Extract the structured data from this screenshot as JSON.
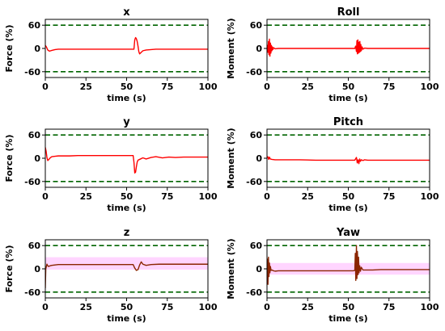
{
  "chart_data": [
    {
      "type": "line",
      "title": "x",
      "xlabel": "time (s)",
      "ylabel": "Force (%)",
      "xlim": [
        0,
        100
      ],
      "ylim": [
        -75,
        75
      ],
      "xticks": [
        "0",
        "25",
        "50",
        "75",
        "100"
      ],
      "yticks": [
        "60",
        "0",
        "-60"
      ],
      "limits": [
        60,
        -60
      ],
      "limit_color": "#006400",
      "series_color": "#ff0000",
      "band_color": "#ffb3ff",
      "band": null,
      "x": [
        0,
        0.5,
        1,
        1.5,
        2.5,
        4,
        6,
        8,
        10,
        15,
        20,
        30,
        40,
        50,
        54.5,
        55,
        55.5,
        56,
        56.5,
        57,
        57.5,
        58,
        59,
        60,
        62,
        65,
        68,
        72,
        76,
        80,
        85,
        90,
        95,
        100
      ],
      "values": [
        8,
        5,
        1,
        -4,
        -7,
        -5,
        -3,
        -2,
        -2,
        -2,
        -2,
        -2,
        -2,
        -2,
        -2,
        22,
        28,
        25,
        18,
        6,
        -8,
        -14,
        -10,
        -6,
        -4,
        -3,
        -2,
        -2,
        -2,
        -2,
        -2,
        -2,
        -2,
        -2
      ],
      "grid": false
    },
    {
      "type": "line",
      "title": "Roll",
      "xlabel": "time (s)",
      "ylabel": "Moment (%)",
      "xlim": [
        0,
        100
      ],
      "ylim": [
        -75,
        75
      ],
      "xticks": [
        "0",
        "25",
        "50",
        "75",
        "100"
      ],
      "yticks": [
        "60",
        "0",
        "-60"
      ],
      "limits": [
        60,
        -60
      ],
      "limit_color": "#006400",
      "series_color": "#ff0000",
      "band_color": "#ffb3ff",
      "band": null,
      "x": [
        0,
        0.3,
        0.6,
        0.9,
        1.2,
        1.5,
        1.8,
        2.1,
        2.4,
        2.7,
        3.0,
        3.3,
        3.6,
        4.0,
        5,
        7,
        10,
        20,
        30,
        40,
        50,
        54,
        54.5,
        55,
        55.3,
        55.6,
        55.9,
        56.2,
        56.5,
        56.8,
        57.1,
        57.4,
        57.7,
        58,
        58.5,
        59,
        60,
        62,
        65,
        70,
        80,
        90,
        100
      ],
      "values": [
        0,
        8,
        -10,
        18,
        -16,
        24,
        -20,
        14,
        -12,
        8,
        -6,
        4,
        -3,
        2,
        -1,
        0,
        0,
        0,
        0,
        0,
        0,
        0,
        6,
        -8,
        20,
        -14,
        22,
        -12,
        16,
        -10,
        18,
        -8,
        10,
        -6,
        4,
        -2,
        1,
        0,
        0,
        0,
        0,
        0,
        0
      ],
      "grid": false
    },
    {
      "type": "line",
      "title": "y",
      "xlabel": "time (s)",
      "ylabel": "Force (%)",
      "xlim": [
        0,
        100
      ],
      "ylim": [
        -75,
        75
      ],
      "xticks": [
        "0",
        "25",
        "50",
        "75",
        "100"
      ],
      "yticks": [
        "60",
        "0",
        "-60"
      ],
      "limits": [
        60,
        -60
      ],
      "limit_color": "#006400",
      "series_color": "#ff0000",
      "band_color": "#ffb3ff",
      "band": null,
      "x": [
        0,
        0.5,
        1,
        1.5,
        2,
        3,
        4,
        6,
        8,
        10,
        15,
        20,
        30,
        40,
        50,
        54,
        54.5,
        55,
        55.5,
        56,
        56.5,
        57,
        58,
        60,
        62,
        65,
        68,
        72,
        76,
        80,
        85,
        90,
        95,
        100
      ],
      "values": [
        28,
        18,
        2,
        -6,
        -4,
        1,
        4,
        5,
        6,
        6,
        6,
        7,
        7,
        7,
        7,
        7,
        -10,
        -38,
        -36,
        -22,
        -10,
        -5,
        -3,
        1,
        -2,
        2,
        4,
        1,
        3,
        2,
        3,
        3,
        3,
        3
      ],
      "grid": false
    },
    {
      "type": "line",
      "title": "Pitch",
      "xlabel": "time (s)",
      "ylabel": "Moment (%)",
      "xlim": [
        0,
        100
      ],
      "ylim": [
        -75,
        75
      ],
      "xticks": [
        "0",
        "25",
        "50",
        "75",
        "100"
      ],
      "yticks": [
        "60",
        "0",
        "-60"
      ],
      "limits": [
        60,
        -60
      ],
      "limit_color": "#006400",
      "series_color": "#ff0000",
      "band_color": "#ffb3ff",
      "band": null,
      "x": [
        0,
        0.5,
        1,
        1.5,
        2,
        3,
        5,
        8,
        12,
        20,
        30,
        40,
        50,
        54,
        55,
        55.5,
        56,
        56.5,
        57,
        57.5,
        58,
        59,
        60,
        62,
        65,
        70,
        80,
        90,
        100
      ],
      "values": [
        2,
        4,
        -3,
        3,
        -2,
        -3,
        -4,
        -4,
        -4,
        -4,
        -5,
        -5,
        -5,
        -5,
        2,
        -12,
        -4,
        -14,
        -2,
        -8,
        -4,
        -6,
        -4,
        -5,
        -5,
        -5,
        -5,
        -5,
        -5
      ],
      "grid": false
    },
    {
      "type": "line",
      "title": "z",
      "xlabel": "time (s)",
      "ylabel": "Force (%)",
      "xlim": [
        0,
        100
      ],
      "ylim": [
        -75,
        75
      ],
      "xticks": [
        "0",
        "25",
        "50",
        "75",
        "100"
      ],
      "yticks": [
        "60",
        "0",
        "-60"
      ],
      "limits": [
        60,
        -60
      ],
      "limit_color": "#006400",
      "series_color": "#8b2500",
      "band_color": "#ffb3ff",
      "band": [
        -2,
        30
      ],
      "x": [
        0,
        0.3,
        0.6,
        1,
        1.5,
        2,
        3,
        4,
        6,
        8,
        10,
        15,
        20,
        30,
        40,
        50,
        54,
        55,
        56,
        57,
        58,
        59,
        60,
        62,
        65,
        70,
        80,
        90,
        100
      ],
      "values": [
        -50,
        0,
        5,
        12,
        8,
        6,
        8,
        9,
        10,
        11,
        11,
        11,
        11,
        11,
        11,
        11,
        11,
        2,
        -4,
        -2,
        10,
        18,
        12,
        9,
        11,
        12,
        12,
        12,
        12
      ],
      "grid": false
    },
    {
      "type": "line",
      "title": "Yaw",
      "xlabel": "time (s)",
      "ylabel": "Moment (%)",
      "xlim": [
        0,
        100
      ],
      "ylim": [
        -75,
        75
      ],
      "xticks": [
        "0",
        "25",
        "50",
        "75",
        "100"
      ],
      "yticks": [
        "60",
        "0",
        "-60"
      ],
      "limits": [
        60,
        -60
      ],
      "limit_color": "#006400",
      "series_color": "#8b2500",
      "band_color": "#ffb3ff",
      "band": [
        -15,
        15
      ],
      "x": [
        0,
        0.3,
        0.6,
        0.9,
        1.2,
        1.5,
        1.8,
        2.1,
        2.5,
        3,
        4,
        5,
        7,
        10,
        20,
        30,
        40,
        50,
        53,
        54,
        54.3,
        54.6,
        55,
        55.3,
        55.6,
        56,
        56.3,
        56.6,
        57,
        57.5,
        58,
        59,
        60,
        62,
        65,
        70,
        80,
        90,
        100
      ],
      "values": [
        -30,
        25,
        -40,
        30,
        -20,
        15,
        -10,
        6,
        -4,
        -3,
        -5,
        -6,
        -5,
        -5,
        -5,
        -5,
        -5,
        -5,
        -5,
        -4,
        40,
        -30,
        60,
        -25,
        45,
        -15,
        30,
        -10,
        8,
        -6,
        4,
        -3,
        -3,
        -3,
        -3,
        -2,
        -2,
        -2,
        -2
      ],
      "grid": false
    }
  ]
}
